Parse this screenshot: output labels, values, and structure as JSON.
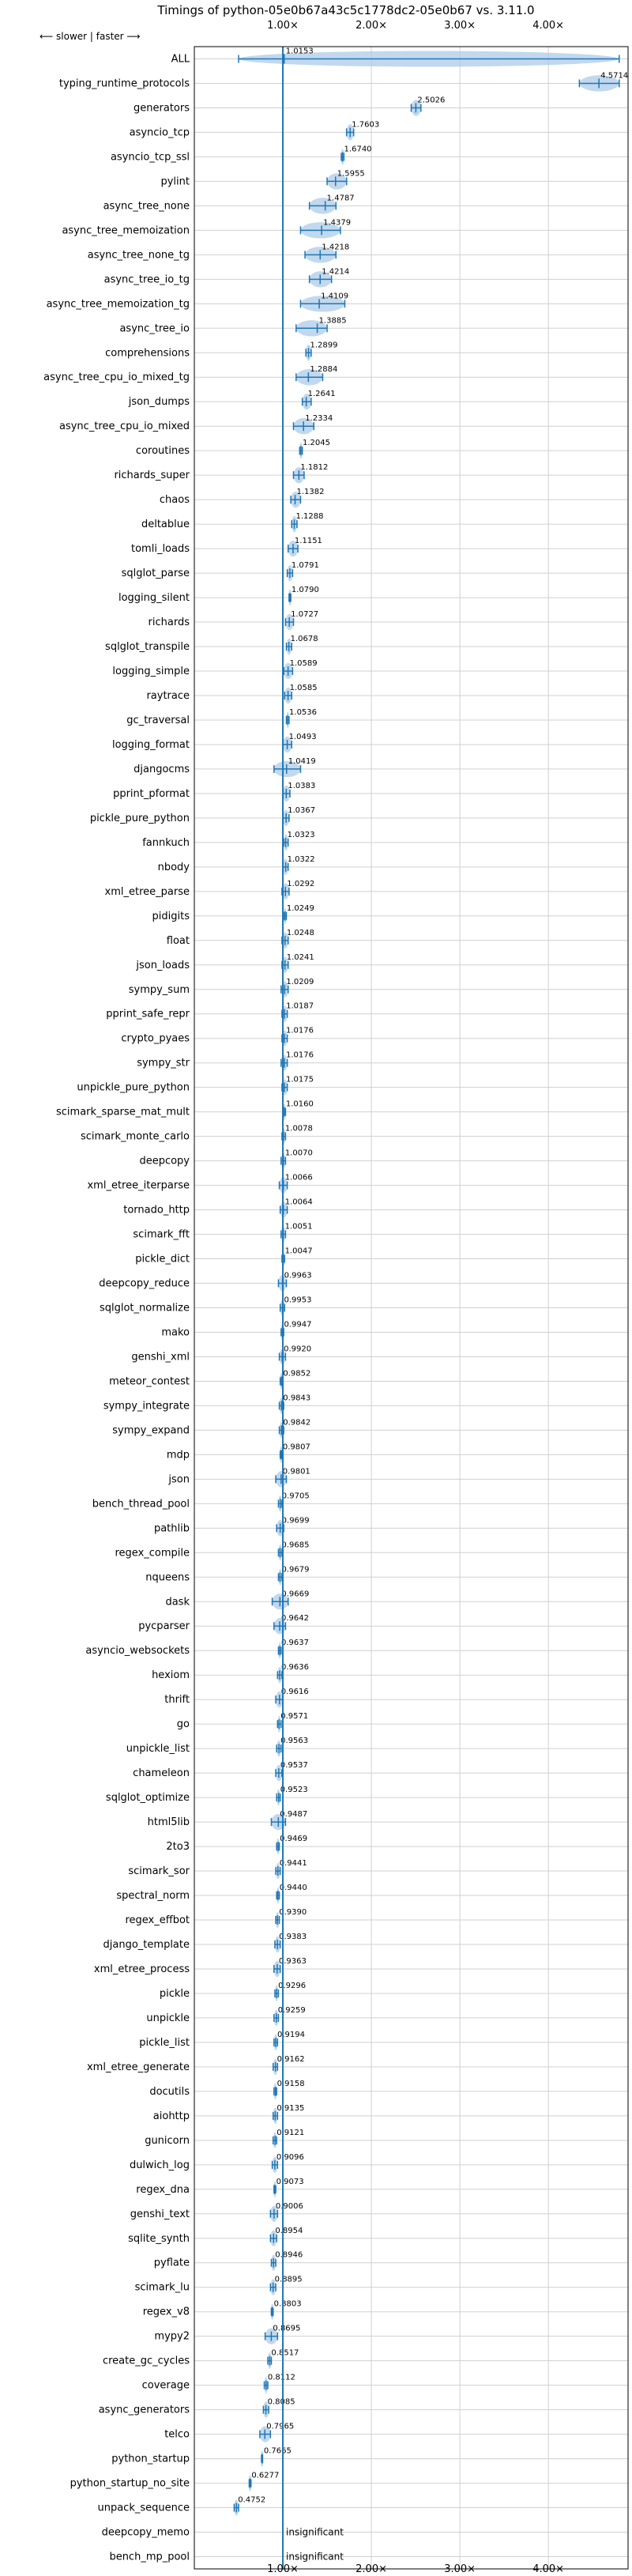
{
  "chart_data": {
    "type": "violin",
    "title": "Timings of python-05e0b67a43c5c1778dc2-05e0b67 vs. 3.11.0",
    "direction_note": "⟵ slower | faster ⟶",
    "xlim": [
      0.0,
      4.9
    ],
    "xticks": [
      1,
      2,
      3,
      4
    ],
    "xtick_labels": [
      "1.00×",
      "2.00×",
      "3.00×",
      "4.00×"
    ],
    "grid": true,
    "reference_line": 1.0,
    "colors": {
      "violin": "#aecbe8",
      "marker": "#1f77b4",
      "median": "#d62728"
    },
    "benchmarks": [
      {
        "name": "ALL",
        "value": 1.0153,
        "label": "1.0153",
        "lo": 0.5,
        "hi": 4.8
      },
      {
        "name": "typing_runtime_protocols",
        "value": 4.5714,
        "label": "4.5714",
        "lo": 4.35,
        "hi": 4.8
      },
      {
        "name": "generators",
        "value": 2.5026,
        "label": "2.5026",
        "lo": 2.45,
        "hi": 2.56
      },
      {
        "name": "asyncio_tcp",
        "value": 1.7603,
        "label": "1.7603",
        "lo": 1.72,
        "hi": 1.8
      },
      {
        "name": "asyncio_tcp_ssl",
        "value": 1.674,
        "label": "1.6740",
        "lo": 1.66,
        "hi": 1.69
      },
      {
        "name": "pylint",
        "value": 1.5955,
        "label": "1.5955",
        "lo": 1.5,
        "hi": 1.72
      },
      {
        "name": "async_tree_none",
        "value": 1.4787,
        "label": "1.4787",
        "lo": 1.3,
        "hi": 1.6
      },
      {
        "name": "async_tree_memoization",
        "value": 1.4379,
        "label": "1.4379",
        "lo": 1.2,
        "hi": 1.65
      },
      {
        "name": "async_tree_none_tg",
        "value": 1.4218,
        "label": "1.4218",
        "lo": 1.25,
        "hi": 1.6
      },
      {
        "name": "async_tree_io_tg",
        "value": 1.4214,
        "label": "1.4214",
        "lo": 1.3,
        "hi": 1.55
      },
      {
        "name": "async_tree_memoization_tg",
        "value": 1.4109,
        "label": "1.4109",
        "lo": 1.2,
        "hi": 1.7
      },
      {
        "name": "async_tree_io",
        "value": 1.3885,
        "label": "1.3885",
        "lo": 1.15,
        "hi": 1.5
      },
      {
        "name": "comprehensions",
        "value": 1.2899,
        "label": "1.2899",
        "lo": 1.26,
        "hi": 1.32
      },
      {
        "name": "async_tree_cpu_io_mixed_tg",
        "value": 1.2884,
        "label": "1.2884",
        "lo": 1.15,
        "hi": 1.45
      },
      {
        "name": "json_dumps",
        "value": 1.2641,
        "label": "1.2641",
        "lo": 1.22,
        "hi": 1.32
      },
      {
        "name": "async_tree_cpu_io_mixed",
        "value": 1.2334,
        "label": "1.2334",
        "lo": 1.12,
        "hi": 1.35
      },
      {
        "name": "coroutines",
        "value": 1.2045,
        "label": "1.2045",
        "lo": 1.19,
        "hi": 1.22
      },
      {
        "name": "richards_super",
        "value": 1.1812,
        "label": "1.1812",
        "lo": 1.12,
        "hi": 1.24
      },
      {
        "name": "chaos",
        "value": 1.1382,
        "label": "1.1382",
        "lo": 1.09,
        "hi": 1.2
      },
      {
        "name": "deltablue",
        "value": 1.1288,
        "label": "1.1288",
        "lo": 1.1,
        "hi": 1.16
      },
      {
        "name": "tomli_loads",
        "value": 1.1151,
        "label": "1.1151",
        "lo": 1.06,
        "hi": 1.17
      },
      {
        "name": "sqlglot_parse",
        "value": 1.0791,
        "label": "1.0791",
        "lo": 1.05,
        "hi": 1.11
      },
      {
        "name": "logging_silent",
        "value": 1.079,
        "label": "1.0790",
        "lo": 1.07,
        "hi": 1.09
      },
      {
        "name": "richards",
        "value": 1.0727,
        "label": "1.0727",
        "lo": 1.03,
        "hi": 1.12
      },
      {
        "name": "sqlglot_transpile",
        "value": 1.0678,
        "label": "1.0678",
        "lo": 1.04,
        "hi": 1.1
      },
      {
        "name": "logging_simple",
        "value": 1.0589,
        "label": "1.0589",
        "lo": 1.01,
        "hi": 1.11
      },
      {
        "name": "raytrace",
        "value": 1.0585,
        "label": "1.0585",
        "lo": 1.02,
        "hi": 1.1
      },
      {
        "name": "gc_traversal",
        "value": 1.0536,
        "label": "1.0536",
        "lo": 1.04,
        "hi": 1.07
      },
      {
        "name": "logging_format",
        "value": 1.0493,
        "label": "1.0493",
        "lo": 1.0,
        "hi": 1.1
      },
      {
        "name": "djangocms",
        "value": 1.0419,
        "label": "1.0419",
        "lo": 0.9,
        "hi": 1.2
      },
      {
        "name": "pprint_pformat",
        "value": 1.0383,
        "label": "1.0383",
        "lo": 1.0,
        "hi": 1.08
      },
      {
        "name": "pickle_pure_python",
        "value": 1.0367,
        "label": "1.0367",
        "lo": 1.0,
        "hi": 1.07
      },
      {
        "name": "fannkuch",
        "value": 1.0323,
        "label": "1.0323",
        "lo": 1.01,
        "hi": 1.06
      },
      {
        "name": "nbody",
        "value": 1.0322,
        "label": "1.0322",
        "lo": 1.0,
        "hi": 1.06
      },
      {
        "name": "xml_etree_parse",
        "value": 1.0292,
        "label": "1.0292",
        "lo": 0.99,
        "hi": 1.07
      },
      {
        "name": "pidigits",
        "value": 1.0249,
        "label": "1.0249",
        "lo": 1.01,
        "hi": 1.04
      },
      {
        "name": "float",
        "value": 1.0248,
        "label": "1.0248",
        "lo": 0.99,
        "hi": 1.06
      },
      {
        "name": "json_loads",
        "value": 1.0241,
        "label": "1.0241",
        "lo": 0.99,
        "hi": 1.06
      },
      {
        "name": "sympy_sum",
        "value": 1.0209,
        "label": "1.0209",
        "lo": 0.98,
        "hi": 1.06
      },
      {
        "name": "pprint_safe_repr",
        "value": 1.0187,
        "label": "1.0187",
        "lo": 0.99,
        "hi": 1.05
      },
      {
        "name": "crypto_pyaes",
        "value": 1.0176,
        "label": "1.0176",
        "lo": 0.99,
        "hi": 1.05
      },
      {
        "name": "sympy_str",
        "value": 1.0176,
        "label": "1.0176",
        "lo": 0.98,
        "hi": 1.05
      },
      {
        "name": "unpickle_pure_python",
        "value": 1.0175,
        "label": "1.0175",
        "lo": 0.99,
        "hi": 1.05
      },
      {
        "name": "scimark_sparse_mat_mult",
        "value": 1.016,
        "label": "1.0160",
        "lo": 1.0,
        "hi": 1.03
      },
      {
        "name": "scimark_monte_carlo",
        "value": 1.0078,
        "label": "1.0078",
        "lo": 0.99,
        "hi": 1.03
      },
      {
        "name": "deepcopy",
        "value": 1.007,
        "label": "1.0070",
        "lo": 0.98,
        "hi": 1.03
      },
      {
        "name": "xml_etree_iterparse",
        "value": 1.0066,
        "label": "1.0066",
        "lo": 0.96,
        "hi": 1.05
      },
      {
        "name": "tornado_http",
        "value": 1.0064,
        "label": "1.0064",
        "lo": 0.97,
        "hi": 1.05
      },
      {
        "name": "scimark_fft",
        "value": 1.0051,
        "label": "1.0051",
        "lo": 0.98,
        "hi": 1.03
      },
      {
        "name": "pickle_dict",
        "value": 1.0047,
        "label": "1.0047",
        "lo": 0.99,
        "hi": 1.02
      },
      {
        "name": "deepcopy_reduce",
        "value": 0.9963,
        "label": "0.9963",
        "lo": 0.95,
        "hi": 1.04
      },
      {
        "name": "sqlglot_normalize",
        "value": 0.9953,
        "label": "0.9953",
        "lo": 0.97,
        "hi": 1.02
      },
      {
        "name": "mako",
        "value": 0.9947,
        "label": "0.9947",
        "lo": 0.98,
        "hi": 1.01
      },
      {
        "name": "genshi_xml",
        "value": 0.992,
        "label": "0.9920",
        "lo": 0.96,
        "hi": 1.03
      },
      {
        "name": "meteor_contest",
        "value": 0.9852,
        "label": "0.9852",
        "lo": 0.97,
        "hi": 1.0
      },
      {
        "name": "sympy_integrate",
        "value": 0.9843,
        "label": "0.9843",
        "lo": 0.96,
        "hi": 1.01
      },
      {
        "name": "sympy_expand",
        "value": 0.9842,
        "label": "0.9842",
        "lo": 0.96,
        "hi": 1.01
      },
      {
        "name": "mdp",
        "value": 0.9807,
        "label": "0.9807",
        "lo": 0.97,
        "hi": 0.99
      },
      {
        "name": "json",
        "value": 0.9801,
        "label": "0.9801",
        "lo": 0.92,
        "hi": 1.04
      },
      {
        "name": "bench_thread_pool",
        "value": 0.9705,
        "label": "0.9705",
        "lo": 0.95,
        "hi": 0.99
      },
      {
        "name": "pathlib",
        "value": 0.9699,
        "label": "0.9699",
        "lo": 0.93,
        "hi": 1.01
      },
      {
        "name": "regex_compile",
        "value": 0.9685,
        "label": "0.9685",
        "lo": 0.95,
        "hi": 0.99
      },
      {
        "name": "nqueens",
        "value": 0.9679,
        "label": "0.9679",
        "lo": 0.95,
        "hi": 0.99
      },
      {
        "name": "dask",
        "value": 0.9669,
        "label": "0.9669",
        "lo": 0.88,
        "hi": 1.06
      },
      {
        "name": "pycparser",
        "value": 0.9642,
        "label": "0.9642",
        "lo": 0.9,
        "hi": 1.03
      },
      {
        "name": "asyncio_websockets",
        "value": 0.9637,
        "label": "0.9637",
        "lo": 0.95,
        "hi": 0.98
      },
      {
        "name": "hexiom",
        "value": 0.9636,
        "label": "0.9636",
        "lo": 0.94,
        "hi": 0.99
      },
      {
        "name": "thrift",
        "value": 0.9616,
        "label": "0.9616",
        "lo": 0.92,
        "hi": 1.0
      },
      {
        "name": "go",
        "value": 0.9571,
        "label": "0.9571",
        "lo": 0.94,
        "hi": 0.98
      },
      {
        "name": "unpickle_list",
        "value": 0.9563,
        "label": "0.9563",
        "lo": 0.93,
        "hi": 0.98
      },
      {
        "name": "chameleon",
        "value": 0.9537,
        "label": "0.9537",
        "lo": 0.92,
        "hi": 0.99
      },
      {
        "name": "sqlglot_optimize",
        "value": 0.9523,
        "label": "0.9523",
        "lo": 0.93,
        "hi": 0.97
      },
      {
        "name": "html5lib",
        "value": 0.9487,
        "label": "0.9487",
        "lo": 0.87,
        "hi": 1.03
      },
      {
        "name": "2to3",
        "value": 0.9469,
        "label": "0.9469",
        "lo": 0.93,
        "hi": 0.96
      },
      {
        "name": "scimark_sor",
        "value": 0.9441,
        "label": "0.9441",
        "lo": 0.92,
        "hi": 0.97
      },
      {
        "name": "spectral_norm",
        "value": 0.944,
        "label": "0.9440",
        "lo": 0.93,
        "hi": 0.96
      },
      {
        "name": "regex_effbot",
        "value": 0.939,
        "label": "0.9390",
        "lo": 0.92,
        "hi": 0.96
      },
      {
        "name": "django_template",
        "value": 0.9383,
        "label": "0.9383",
        "lo": 0.91,
        "hi": 0.97
      },
      {
        "name": "xml_etree_process",
        "value": 0.9363,
        "label": "0.9363",
        "lo": 0.9,
        "hi": 0.97
      },
      {
        "name": "pickle",
        "value": 0.9296,
        "label": "0.9296",
        "lo": 0.91,
        "hi": 0.95
      },
      {
        "name": "unpickle",
        "value": 0.9259,
        "label": "0.9259",
        "lo": 0.9,
        "hi": 0.95
      },
      {
        "name": "pickle_list",
        "value": 0.9194,
        "label": "0.9194",
        "lo": 0.9,
        "hi": 0.94
      },
      {
        "name": "xml_etree_generate",
        "value": 0.9162,
        "label": "0.9162",
        "lo": 0.89,
        "hi": 0.94
      },
      {
        "name": "docutils",
        "value": 0.9158,
        "label": "0.9158",
        "lo": 0.9,
        "hi": 0.93
      },
      {
        "name": "aiohttp",
        "value": 0.9135,
        "label": "0.9135",
        "lo": 0.89,
        "hi": 0.94
      },
      {
        "name": "gunicorn",
        "value": 0.9121,
        "label": "0.9121",
        "lo": 0.89,
        "hi": 0.93
      },
      {
        "name": "dulwich_log",
        "value": 0.9096,
        "label": "0.9096",
        "lo": 0.88,
        "hi": 0.94
      },
      {
        "name": "regex_dna",
        "value": 0.9073,
        "label": "0.9073",
        "lo": 0.9,
        "hi": 0.92
      },
      {
        "name": "genshi_text",
        "value": 0.9006,
        "label": "0.9006",
        "lo": 0.86,
        "hi": 0.94
      },
      {
        "name": "sqlite_synth",
        "value": 0.8954,
        "label": "0.8954",
        "lo": 0.86,
        "hi": 0.93
      },
      {
        "name": "pyflate",
        "value": 0.8946,
        "label": "0.8946",
        "lo": 0.87,
        "hi": 0.92
      },
      {
        "name": "scimark_lu",
        "value": 0.8895,
        "label": "0.8895",
        "lo": 0.86,
        "hi": 0.92
      },
      {
        "name": "regex_v8",
        "value": 0.8803,
        "label": "0.8803",
        "lo": 0.87,
        "hi": 0.89
      },
      {
        "name": "mypy2",
        "value": 0.8695,
        "label": "0.8695",
        "lo": 0.8,
        "hi": 0.94
      },
      {
        "name": "create_gc_cycles",
        "value": 0.8517,
        "label": "0.8517",
        "lo": 0.83,
        "hi": 0.87
      },
      {
        "name": "coverage",
        "value": 0.8112,
        "label": "0.8112",
        "lo": 0.79,
        "hi": 0.83
      },
      {
        "name": "async_generators",
        "value": 0.8085,
        "label": "0.8085",
        "lo": 0.78,
        "hi": 0.84
      },
      {
        "name": "telco",
        "value": 0.7965,
        "label": "0.7965",
        "lo": 0.74,
        "hi": 0.86
      },
      {
        "name": "python_startup",
        "value": 0.7665,
        "label": "0.7665",
        "lo": 0.76,
        "hi": 0.77
      },
      {
        "name": "python_startup_no_site",
        "value": 0.6277,
        "label": "0.6277",
        "lo": 0.62,
        "hi": 0.64
      },
      {
        "name": "unpack_sequence",
        "value": 0.4752,
        "label": "0.4752",
        "lo": 0.45,
        "hi": 0.5
      },
      {
        "name": "deepcopy_memo",
        "value": null,
        "label": "insignificant"
      },
      {
        "name": "bench_mp_pool",
        "value": null,
        "label": "insignificant"
      }
    ]
  }
}
